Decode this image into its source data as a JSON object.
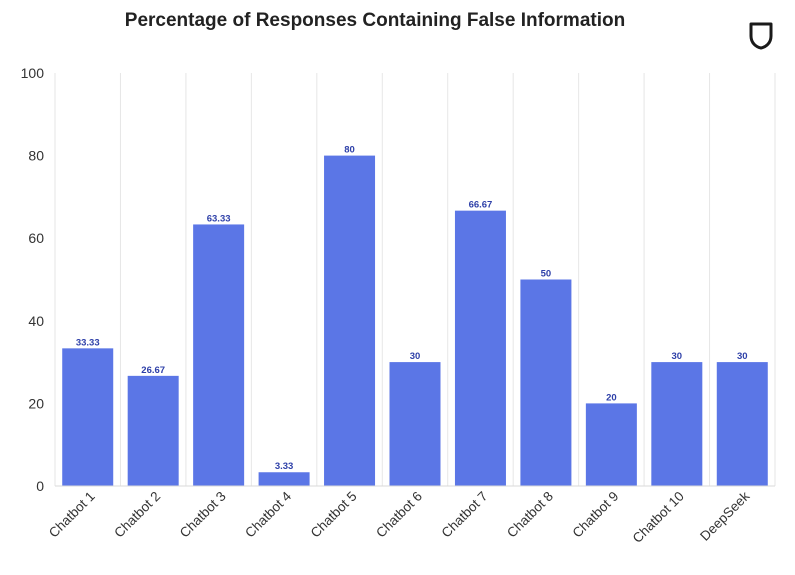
{
  "chart_data": {
    "type": "bar",
    "title": "Percentage of Responses Containing False Information",
    "categories": [
      "Chatbot 1",
      "Chatbot 2",
      "Chatbot 3",
      "Chatbot 4",
      "Chatbot 5",
      "Chatbot 6",
      "Chatbot 7",
      "Chatbot 8",
      "Chatbot 9",
      "Chatbot 10",
      "DeepSeek"
    ],
    "values": [
      33.33,
      26.67,
      63.33,
      3.33,
      80,
      30,
      66.67,
      50,
      20,
      30,
      30
    ],
    "value_labels": [
      "33.33",
      "26.67",
      "63.33",
      "3.33",
      "80",
      "30",
      "66.67",
      "50",
      "20",
      "30",
      "30"
    ],
    "yticks": [
      "0",
      "20",
      "40",
      "60",
      "80",
      "100"
    ],
    "ylim": [
      0,
      100
    ],
    "xlabel": "",
    "ylabel": "",
    "grid": "vertical",
    "bar_color": "#5b76e6",
    "label_color": "#2d3fa8",
    "grid_color": "#e6e6e6"
  },
  "logo": {
    "name": "shield-logo"
  }
}
